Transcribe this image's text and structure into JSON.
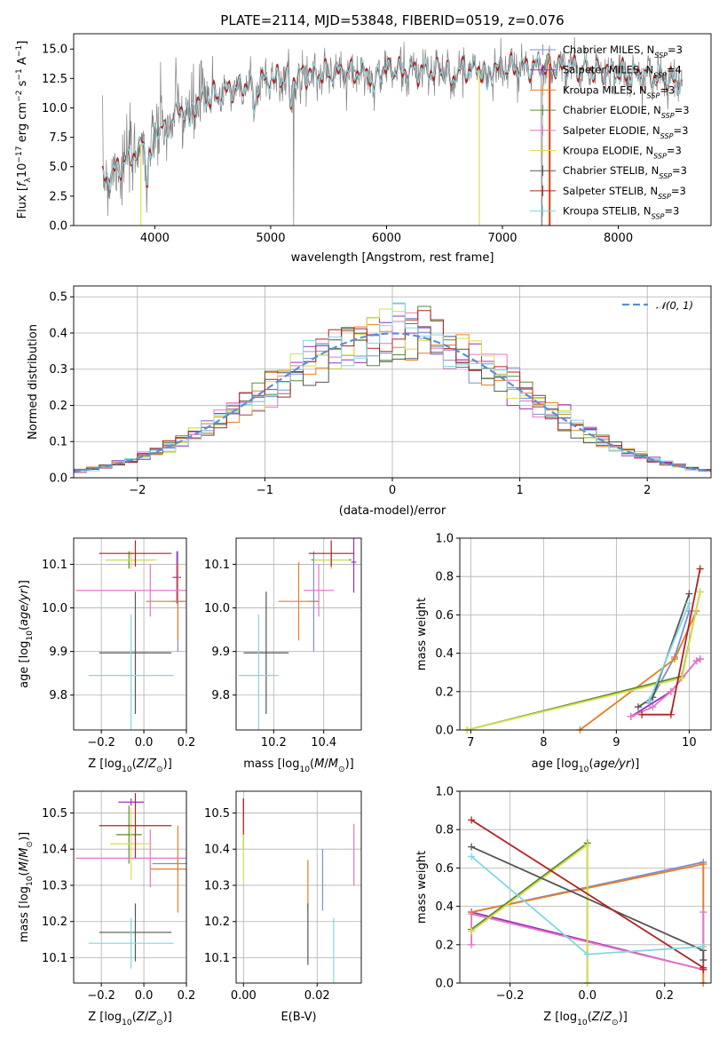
{
  "colors": {
    "chabrier_miles": "#7b8fd0",
    "salpeter_miles": "#9c2fbd",
    "kroupa_miles": "#e67e22",
    "chabrier_elodie": "#5a8a3a",
    "salpeter_elodie": "#e377c2",
    "kroupa_elodie": "#d8df4a",
    "chabrier_stelib": "#555555",
    "salpeter_stelib": "#b22222",
    "kroupa_stelib": "#80d8e0",
    "spectrum": "#808080",
    "normal": "#5b8fd6"
  },
  "chart_data": [
    {
      "id": "spectrum",
      "type": "line",
      "title": "PLATE=2114, MJD=53848, FIBERID=0519, z=0.076",
      "xlabel": "wavelength [Angstrom, rest frame]",
      "ylabel": "Flux [fλ10⁻¹⁷ erg cm⁻² s⁻¹ A⁻¹]",
      "xlim": [
        3300,
        8800
      ],
      "ylim": [
        0,
        16.3
      ],
      "xticks": [
        4000,
        5000,
        6000,
        7000,
        8000
      ],
      "yticks": [
        0.0,
        2.5,
        5.0,
        7.5,
        10.0,
        12.5,
        15.0
      ],
      "legend": {
        "placement": "right",
        "entries": [
          "Chabrier MILES, N_SSP=3",
          "Salpeter MILES, N_SSP=4",
          "Kroupa MILES, N_SSP=3",
          "Chabrier ELODIE, N_SSP=3",
          "Salpeter ELODIE, N_SSP=3",
          "Kroupa ELODIE, N_SSP=3",
          "Chabrier STELIB, N_SSP=3",
          "Salpeter STELIB, N_SSP=3",
          "Kroupa STELIB, N_SSP=3"
        ]
      },
      "continuum": [
        [
          3550,
          4.0
        ],
        [
          3650,
          4.6
        ],
        [
          3800,
          5.8
        ],
        [
          3950,
          7.6
        ],
        [
          4100,
          9.0
        ],
        [
          4300,
          10.2
        ],
        [
          4500,
          11.0
        ],
        [
          4800,
          12.0
        ],
        [
          5200,
          12.8
        ],
        [
          5600,
          13.0
        ],
        [
          6000,
          13.2
        ],
        [
          6400,
          13.1
        ],
        [
          6800,
          13.3
        ],
        [
          7200,
          13.5
        ],
        [
          7600,
          13.4
        ],
        [
          8000,
          13.0
        ],
        [
          8400,
          12.5
        ],
        [
          8550,
          12.2
        ]
      ]
    },
    {
      "id": "residuals",
      "type": "histogram",
      "xlabel": "(data-model)/error",
      "ylabel": "Normed distribution",
      "xlim": [
        -2.5,
        2.5
      ],
      "ylim": [
        0,
        0.53
      ],
      "xticks": [
        -2,
        -1,
        0,
        1,
        2
      ],
      "yticks": [
        0.0,
        0.1,
        0.2,
        0.3,
        0.4,
        0.5
      ],
      "grid": true,
      "legend": {
        "placement": "top-right",
        "entries": [
          "𝒩(0, 1)"
        ]
      },
      "bin_width": 0.1
    },
    {
      "id": "age_vs_Z",
      "type": "errorbar",
      "xlabel": "Z [log10(Z/Z⊙)]",
      "ylabel": "age  [log10(age/yr)]",
      "xlim": [
        -0.33,
        0.2
      ],
      "ylim": [
        9.72,
        10.16
      ],
      "xticks": [
        -0.2,
        0.0,
        0.2
      ],
      "yticks": [
        9.8,
        9.9,
        10.0,
        10.1
      ],
      "points": [
        {
          "s": "chabrier_miles",
          "x": 0.16,
          "y": 10.015,
          "xerr": 0.03,
          "yerr": 0.115
        },
        {
          "s": "salpeter_miles",
          "x": 0.155,
          "y": 10.07,
          "xerr": 0.02,
          "yerr": 0.06
        },
        {
          "s": "kroupa_miles",
          "x": 0.16,
          "y": 10.015,
          "xerr": 0.15,
          "yerr": 0.09
        },
        {
          "s": "chabrier_elodie",
          "x": -0.07,
          "y": 10.11,
          "xerr": 0.11,
          "yerr": 0.02
        },
        {
          "s": "salpeter_elodie",
          "x": 0.03,
          "y": 10.04,
          "xerr": 0.35,
          "yerr": 0.06
        },
        {
          "s": "kroupa_elodie",
          "x": -0.06,
          "y": 10.11,
          "xerr": 0.12,
          "yerr": 0.02
        },
        {
          "s": "chabrier_stelib",
          "x": -0.04,
          "y": 9.897,
          "xerr": 0.17,
          "yerr": 0.14
        },
        {
          "s": "salpeter_stelib",
          "x": -0.04,
          "y": 10.125,
          "xerr": 0.17,
          "yerr": 0.03
        },
        {
          "s": "kroupa_stelib",
          "x": -0.06,
          "y": 9.845,
          "xerr": 0.2,
          "yerr": 0.14
        }
      ]
    },
    {
      "id": "age_vs_mass",
      "type": "errorbar",
      "xlabel": "mass [log10(M/M⊙)]",
      "ylim": [
        9.72,
        10.16
      ],
      "xlim": [
        10.05,
        10.55
      ],
      "xticks": [
        10.2,
        10.4
      ],
      "yticks": [
        9.8,
        9.9,
        10.0,
        10.1
      ],
      "points": [
        {
          "s": "chabrier_miles",
          "x": 10.36,
          "y": 10.015,
          "xerr": 0.02,
          "yerr": 0.115
        },
        {
          "s": "salpeter_miles",
          "x": 10.52,
          "y": 10.105,
          "xerr": 0.01,
          "yerr": 0.07
        },
        {
          "s": "kroupa_miles",
          "x": 10.3,
          "y": 10.015,
          "xerr": 0.08,
          "yerr": 0.09
        },
        {
          "s": "chabrier_elodie",
          "x": 10.43,
          "y": 10.11,
          "xerr": 0.08,
          "yerr": 0.02
        },
        {
          "s": "salpeter_elodie",
          "x": 10.38,
          "y": 10.04,
          "xerr": 0.06,
          "yerr": 0.06
        },
        {
          "s": "kroupa_elodie",
          "x": 10.43,
          "y": 10.11,
          "xerr": 0.07,
          "yerr": 0.02
        },
        {
          "s": "chabrier_stelib",
          "x": 10.17,
          "y": 9.897,
          "xerr": 0.09,
          "yerr": 0.14
        },
        {
          "s": "salpeter_stelib",
          "x": 10.43,
          "y": 10.125,
          "xerr": 0.09,
          "yerr": 0.03
        },
        {
          "s": "kroupa_stelib",
          "x": 10.14,
          "y": 9.845,
          "xerr": 0.08,
          "yerr": 0.14
        }
      ]
    },
    {
      "id": "mass_weight_vs_age",
      "type": "line",
      "xlabel": "age  [log10(age/yr)]",
      "ylabel": "mass weight",
      "xlim": [
        6.85,
        10.3
      ],
      "ylim": [
        0,
        1.0
      ],
      "xticks": [
        7,
        8,
        9,
        10
      ],
      "yticks": [
        0.0,
        0.2,
        0.4,
        0.6,
        0.8,
        1.0
      ],
      "series": [
        {
          "s": "chabrier_miles",
          "x": [
            9.45,
            9.8,
            10.0
          ],
          "y": [
            0.14,
            0.38,
            0.62
          ]
        },
        {
          "s": "salpeter_miles",
          "x": [
            9.2,
            9.75,
            10.1,
            10.15
          ],
          "y": [
            0.07,
            0.2,
            0.36,
            0.37
          ]
        },
        {
          "s": "kroupa_miles",
          "x": [
            8.5,
            9.8,
            10.1
          ],
          "y": [
            0.0,
            0.37,
            0.62
          ]
        },
        {
          "s": "chabrier_elodie",
          "x": [
            6.95,
            9.9,
            10.15
          ],
          "y": [
            0.0,
            0.28,
            0.72
          ]
        },
        {
          "s": "salpeter_elodie",
          "x": [
            9.2,
            9.5,
            9.75,
            10.1,
            10.15
          ],
          "y": [
            0.07,
            0.12,
            0.2,
            0.36,
            0.37
          ]
        },
        {
          "s": "kroupa_elodie",
          "x": [
            6.95,
            9.9,
            10.15
          ],
          "y": [
            0.0,
            0.27,
            0.72
          ]
        },
        {
          "s": "chabrier_stelib",
          "x": [
            9.3,
            9.5,
            10.0
          ],
          "y": [
            0.12,
            0.17,
            0.71
          ]
        },
        {
          "s": "salpeter_stelib",
          "x": [
            9.35,
            9.75,
            10.15
          ],
          "y": [
            0.08,
            0.08,
            0.84
          ]
        },
        {
          "s": "kroupa_stelib",
          "x": [
            9.45,
            10.0
          ],
          "y": [
            0.15,
            0.66
          ]
        }
      ]
    },
    {
      "id": "mass_vs_Z",
      "type": "errorbar",
      "xlabel": "Z [log10(Z/Z⊙)]",
      "ylabel": "mass [log10(M/M⊙)]",
      "xlim": [
        -0.33,
        0.2
      ],
      "ylim": [
        10.03,
        10.56
      ],
      "xticks": [
        -0.2,
        0.0,
        0.2
      ],
      "yticks": [
        10.1,
        10.2,
        10.3,
        10.4,
        10.5
      ],
      "points": [
        {
          "s": "chabrier_miles",
          "x": 0.16,
          "y": 10.36,
          "xerr": 0.12,
          "yerr": 0.02
        },
        {
          "s": "salpeter_miles",
          "x": -0.06,
          "y": 10.53,
          "xerr": 0.06,
          "yerr": 0.01
        },
        {
          "s": "kroupa_miles",
          "x": 0.16,
          "y": 10.345,
          "xerr": 0.13,
          "yerr": 0.12
        },
        {
          "s": "chabrier_elodie",
          "x": -0.07,
          "y": 10.44,
          "xerr": 0.06,
          "yerr": 0.08
        },
        {
          "s": "salpeter_elodie",
          "x": 0.03,
          "y": 10.375,
          "xerr": 0.35,
          "yerr": 0.08
        },
        {
          "s": "kroupa_elodie",
          "x": -0.06,
          "y": 10.415,
          "xerr": 0.1,
          "yerr": 0.1
        },
        {
          "s": "chabrier_stelib",
          "x": -0.04,
          "y": 10.17,
          "xerr": 0.17,
          "yerr": 0.08
        },
        {
          "s": "salpeter_stelib",
          "x": -0.04,
          "y": 10.465,
          "xerr": 0.17,
          "yerr": 0.09
        },
        {
          "s": "kroupa_stelib",
          "x": -0.06,
          "y": 10.14,
          "xerr": 0.2,
          "yerr": 0.07
        }
      ]
    },
    {
      "id": "mass_vs_ebv",
      "type": "errorbar",
      "xlabel": "E(B-V)",
      "xlim": [
        -0.002,
        0.032
      ],
      "ylim": [
        10.03,
        10.56
      ],
      "xticks": [
        0.0,
        0.02
      ],
      "yticks": [
        10.1,
        10.2,
        10.3,
        10.4,
        10.5
      ],
      "points": [
        {
          "s": "chabrier_miles",
          "x": 0.0215,
          "y": 10.315,
          "xerr": 0,
          "yerr": 0.085
        },
        {
          "s": "salpeter_miles",
          "x": 0.0,
          "y": 10.5,
          "xerr": 0,
          "yerr": 0.04
        },
        {
          "s": "kroupa_miles",
          "x": 0.0175,
          "y": 10.3,
          "xerr": 0,
          "yerr": 0.07
        },
        {
          "s": "chabrier_elodie",
          "x": 0.0,
          "y": 10.45,
          "xerr": 0,
          "yerr": 0.05
        },
        {
          "s": "salpeter_elodie",
          "x": 0.03,
          "y": 10.385,
          "xerr": 0,
          "yerr": 0.085
        },
        {
          "s": "kroupa_elodie",
          "x": 0.0,
          "y": 10.4,
          "xerr": 0,
          "yerr": 0.09
        },
        {
          "s": "chabrier_stelib",
          "x": 0.0175,
          "y": 10.165,
          "xerr": 0,
          "yerr": 0.085
        },
        {
          "s": "salpeter_stelib",
          "x": 0.0,
          "y": 10.49,
          "xerr": 0,
          "yerr": 0.05
        },
        {
          "s": "kroupa_stelib",
          "x": 0.0245,
          "y": 10.095,
          "xerr": 0,
          "yerr": 0.115
        }
      ]
    },
    {
      "id": "mass_weight_vs_Z",
      "type": "line",
      "xlabel": "Z [log10(Z/Z⊙)]",
      "ylabel": "mass weight",
      "xlim": [
        -0.33,
        0.32
      ],
      "ylim": [
        0,
        1.0
      ],
      "xticks": [
        -0.2,
        0.0,
        0.2
      ],
      "yticks": [
        0.0,
        0.2,
        0.4,
        0.6,
        0.8,
        1.0
      ],
      "series": [
        {
          "s": "chabrier_miles",
          "x": [
            -0.3,
            0.3,
            0.3
          ],
          "y": [
            0.37,
            0.63,
            0.0
          ]
        },
        {
          "s": "salpeter_miles",
          "x": [
            -0.3,
            0.3
          ],
          "y": [
            0.37,
            0.07
          ]
        },
        {
          "s": "kroupa_miles",
          "x": [
            -0.3,
            0.3,
            0.3
          ],
          "y": [
            0.37,
            0.62,
            0.0
          ]
        },
        {
          "s": "chabrier_elodie",
          "x": [
            -0.3,
            0.0,
            0.0
          ],
          "y": [
            0.28,
            0.73,
            0.0
          ]
        },
        {
          "s": "salpeter_elodie",
          "x": [
            -0.3,
            -0.3,
            0.3,
            0.3
          ],
          "y": [
            0.2,
            0.36,
            0.07,
            0.37
          ]
        },
        {
          "s": "kroupa_elodie",
          "x": [
            -0.3,
            0.0,
            0.0
          ],
          "y": [
            0.27,
            0.72,
            0.0
          ]
        },
        {
          "s": "chabrier_stelib",
          "x": [
            -0.3,
            0.3,
            0.3
          ],
          "y": [
            0.71,
            0.17,
            0.12
          ]
        },
        {
          "s": "salpeter_stelib",
          "x": [
            -0.3,
            0.3,
            0.3
          ],
          "y": [
            0.85,
            0.08,
            0.07
          ]
        },
        {
          "s": "kroupa_stelib",
          "x": [
            -0.3,
            0.0,
            0.3
          ],
          "y": [
            0.66,
            0.15,
            0.19
          ]
        }
      ]
    }
  ]
}
